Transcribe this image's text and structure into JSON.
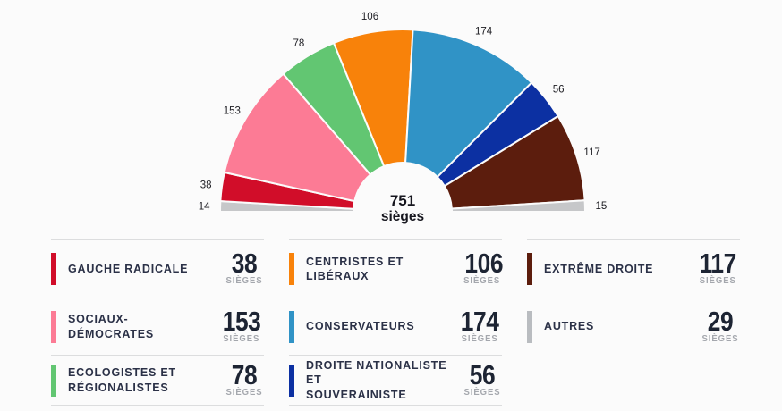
{
  "background": "#fbfbfb",
  "chart_data": {
    "type": "pie",
    "subtype": "hemicycle-half-donut",
    "center": {
      "value": "751",
      "unit": "sièges"
    },
    "total_seats": 751,
    "segments": [
      {
        "id": "autres-gauche",
        "party": "AUTRES",
        "value": 14,
        "label": "14",
        "color": "#c6c7c9"
      },
      {
        "id": "gauche-radicale",
        "party": "GAUCHE RADICALE",
        "value": 38,
        "label": "38",
        "color": "#d10d29"
      },
      {
        "id": "sociaux-democrates",
        "party": "SOCIAUX-DÉMOCRATES",
        "value": 153,
        "label": "153",
        "color": "#fc7b95"
      },
      {
        "id": "ecologistes-regionalistes",
        "party": "ECOLOGISTES ET RÉGIONALISTES",
        "value": 78,
        "label": "78",
        "color": "#62c672"
      },
      {
        "id": "centristes-liberaux",
        "party": "CENTRISTES ET LIBÉRAUX",
        "value": 106,
        "label": "106",
        "color": "#f8820a"
      },
      {
        "id": "conservateurs",
        "party": "CONSERVATEURS",
        "value": 174,
        "label": "174",
        "color": "#3093c6"
      },
      {
        "id": "droite-nationaliste",
        "party": "DROITE NATIONALISTE ET SOUVERAINISTE",
        "value": 56,
        "label": "56",
        "color": "#0c30a2"
      },
      {
        "id": "extreme-droite",
        "party": "EXTRÊME DROITE",
        "value": 117,
        "label": "117",
        "color": "#5c1d0d"
      },
      {
        "id": "autres-droite",
        "party": "AUTRES",
        "value": 15,
        "label": "15",
        "color": "#c6c7c9"
      }
    ]
  },
  "legend": {
    "unit": "SIÈGES",
    "items": [
      {
        "id": "gauche-radicale",
        "label": "GAUCHE RADICALE",
        "seats": "38",
        "color": "#d10d29"
      },
      {
        "id": "centristes-liberaux",
        "label": "CENTRISTES ET LIBÉRAUX",
        "seats": "106",
        "color": "#f8820a"
      },
      {
        "id": "extreme-droite",
        "label": "EXTRÊME DROITE",
        "seats": "117",
        "color": "#5c1d0d"
      },
      {
        "id": "sociaux-democrates",
        "label": "SOCIAUX-DÉMOCRATES",
        "seats": "153",
        "color": "#fc7b95"
      },
      {
        "id": "conservateurs",
        "label": "CONSERVATEURS",
        "seats": "174",
        "color": "#3093c6"
      },
      {
        "id": "autres",
        "label": "AUTRES",
        "seats": "29",
        "color": "#b9bcc0"
      },
      {
        "id": "ecologistes-regionalistes",
        "label": "ECOLOGISTES ET\nRÉGIONALISTES",
        "seats": "78",
        "color": "#62c672"
      },
      {
        "id": "droite-nationaliste",
        "label": "DROITE NATIONALISTE ET\nSOUVERAINISTE",
        "seats": "56",
        "color": "#0c30a2"
      }
    ]
  }
}
